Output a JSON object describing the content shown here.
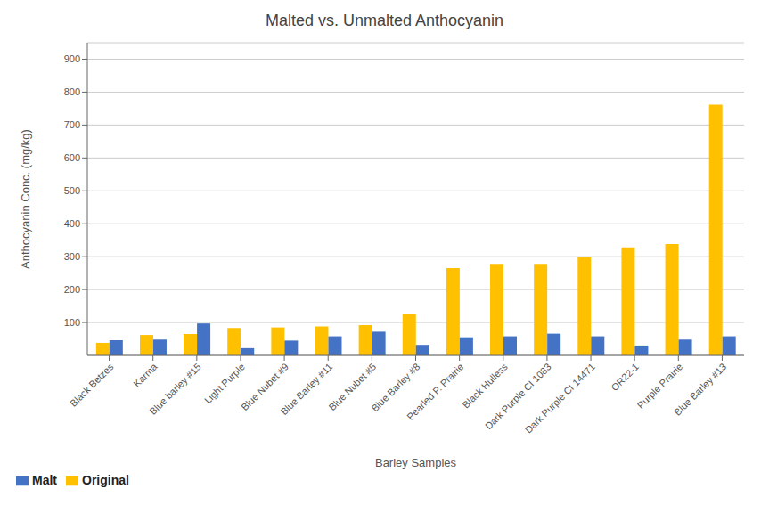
{
  "chart_data": {
    "type": "bar",
    "title": "Malted vs. Unmalted Anthocyanin",
    "xlabel": "Barley Samples",
    "ylabel": "Anthocyanin Conc. (mg/kg)",
    "categories": [
      "Black Betzes",
      "Karma",
      "Blue barley #15",
      "Light Purple",
      "Blue Nubet #9",
      "Blue Barley #11",
      "Blue Nubet #5",
      "Blue Barley #8",
      "Pearled P. Prairie",
      "Black Hulless",
      "Dark Purple CI 1083",
      "Dark Purple CI 14471",
      "OR22-1",
      "Purple Prairie",
      "Blue Barley #13"
    ],
    "series": [
      {
        "name": "Original",
        "color": "#FFC000",
        "values": [
          38,
          62,
          65,
          83,
          85,
          88,
          92,
          127,
          265,
          278,
          278,
          300,
          328,
          338,
          762
        ]
      },
      {
        "name": "Malt",
        "color": "#4472C4",
        "values": [
          46,
          48,
          97,
          22,
          45,
          58,
          72,
          32,
          55,
          58,
          66,
          58,
          30,
          48,
          58
        ]
      }
    ],
    "ylim": [
      0,
      950
    ],
    "yticks": [
      100,
      200,
      300,
      400,
      500,
      600,
      700,
      800,
      900
    ],
    "grid": true,
    "legend": "lower left"
  }
}
